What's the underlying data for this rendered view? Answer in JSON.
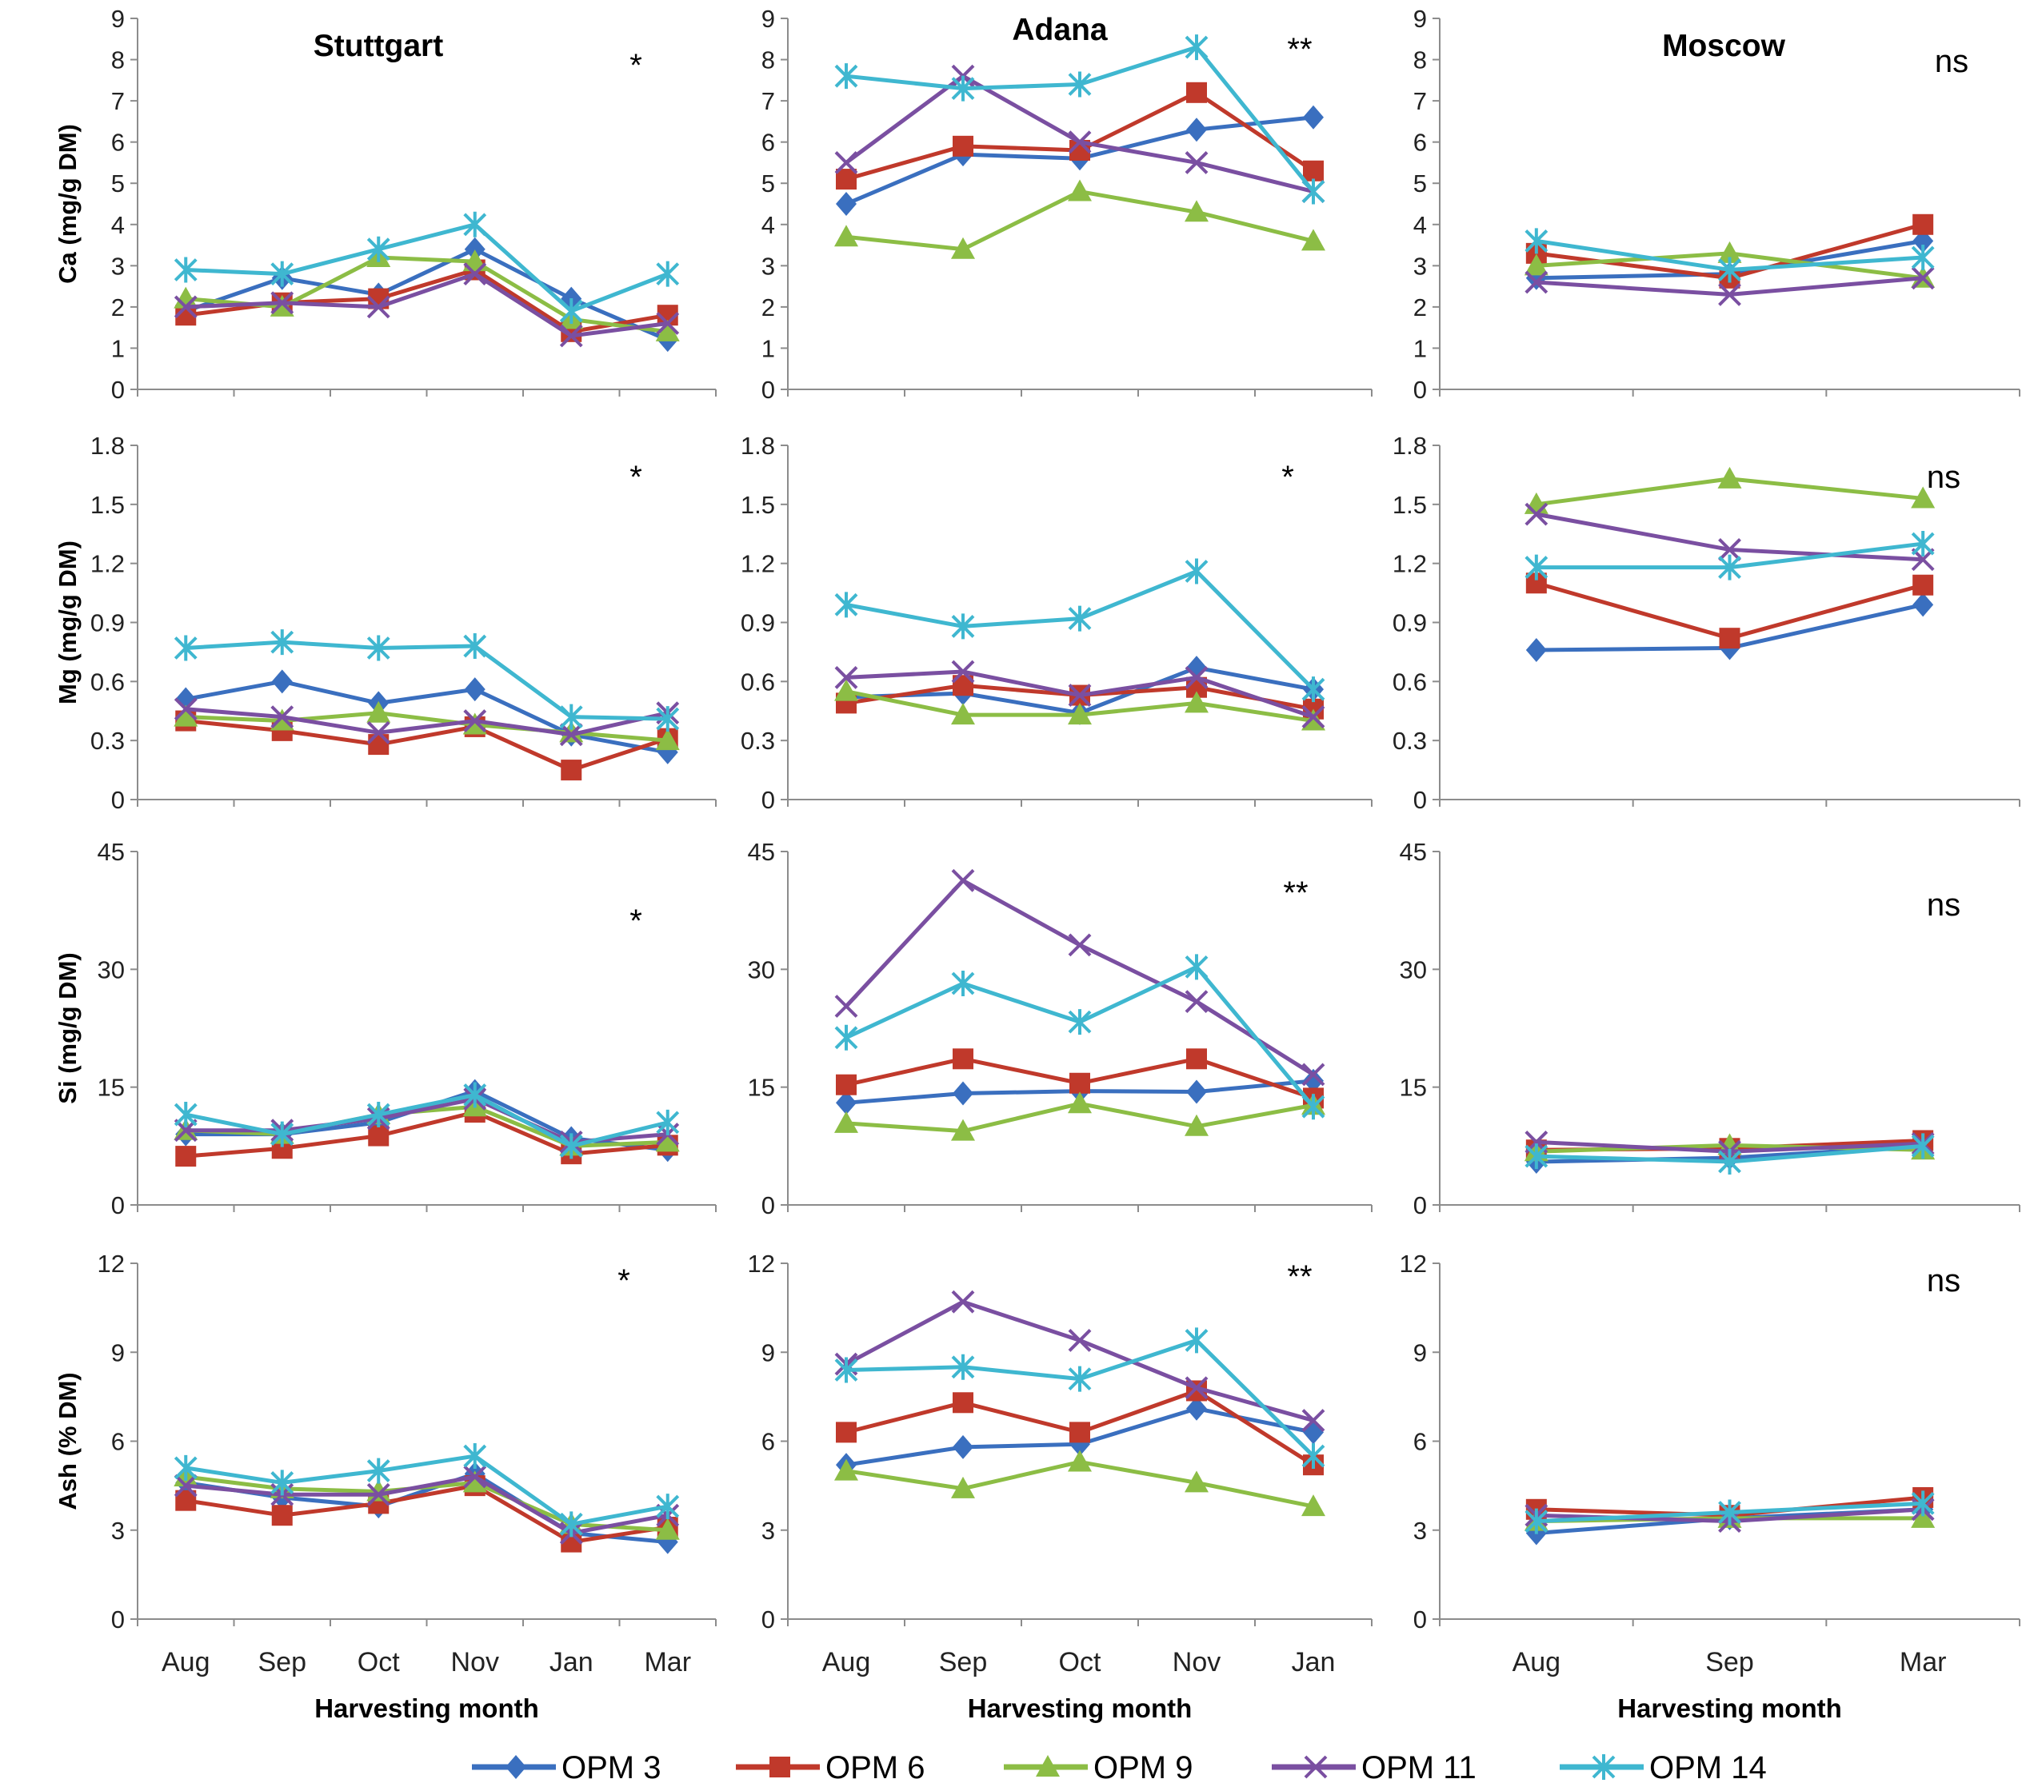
{
  "colors": {
    "OPM 3": "#3a6fbf",
    "OPM 6": "#c0392b",
    "OPM 9": "#8cbd45",
    "OPM 11": "#7a4fa1",
    "OPM 14": "#3fb7d0"
  },
  "legend": [
    "OPM 3",
    "OPM 6",
    "OPM 9",
    "OPM 11",
    "OPM 14"
  ],
  "chart_data": [
    {
      "type": "line",
      "site": "Stuttgart",
      "title": "Stuttgart",
      "ylabel": "Ca (mg/g DM)",
      "xlabel": "",
      "sig": "*",
      "ylim": [
        0,
        9
      ],
      "yticks": [
        0,
        1,
        2,
        3,
        4,
        5,
        6,
        7,
        8,
        9
      ],
      "categories": [
        "Aug",
        "Sep",
        "Oct",
        "Nov",
        "Jan",
        "Mar"
      ],
      "series": [
        {
          "name": "OPM 3",
          "values": [
            1.9,
            2.7,
            2.3,
            3.4,
            2.2,
            1.2
          ]
        },
        {
          "name": "OPM 6",
          "values": [
            1.8,
            2.1,
            2.2,
            2.9,
            1.4,
            1.8
          ]
        },
        {
          "name": "OPM 9",
          "values": [
            2.2,
            2.0,
            3.2,
            3.1,
            1.7,
            1.4
          ]
        },
        {
          "name": "OPM 11",
          "values": [
            2.0,
            2.1,
            2.0,
            2.8,
            1.3,
            1.6
          ]
        },
        {
          "name": "OPM 14",
          "values": [
            2.9,
            2.8,
            3.4,
            4.0,
            1.9,
            2.8
          ]
        }
      ]
    },
    {
      "type": "line",
      "site": "Adana",
      "title": "Adana",
      "ylabel": "",
      "xlabel": "",
      "sig": "**",
      "ylim": [
        0,
        9
      ],
      "yticks": [
        0,
        1,
        2,
        3,
        4,
        5,
        6,
        7,
        8,
        9
      ],
      "categories": [
        "Aug",
        "Sep",
        "Oct",
        "Nov",
        "Jan"
      ],
      "series": [
        {
          "name": "OPM 3",
          "values": [
            4.5,
            5.7,
            5.6,
            6.3,
            6.6
          ]
        },
        {
          "name": "OPM 6",
          "values": [
            5.1,
            5.9,
            5.8,
            7.2,
            5.3
          ]
        },
        {
          "name": "OPM 9",
          "values": [
            3.7,
            3.4,
            4.8,
            4.3,
            3.6
          ]
        },
        {
          "name": "OPM 11",
          "values": [
            5.5,
            7.6,
            6.0,
            5.5,
            4.8
          ]
        },
        {
          "name": "OPM 14",
          "values": [
            7.6,
            7.3,
            7.4,
            8.3,
            4.8
          ]
        }
      ]
    },
    {
      "type": "line",
      "site": "Moscow",
      "title": "Moscow",
      "ylabel": "",
      "xlabel": "",
      "sig": "ns",
      "ylim": [
        0,
        9
      ],
      "yticks": [
        0,
        1,
        2,
        3,
        4,
        5,
        6,
        7,
        8,
        9
      ],
      "categories": [
        "Aug",
        "Sep",
        "Mar"
      ],
      "series": [
        {
          "name": "OPM 3",
          "values": [
            2.7,
            2.8,
            3.6
          ]
        },
        {
          "name": "OPM 6",
          "values": [
            3.3,
            2.7,
            4.0
          ]
        },
        {
          "name": "OPM 9",
          "values": [
            3.0,
            3.3,
            2.7
          ]
        },
        {
          "name": "OPM 11",
          "values": [
            2.6,
            2.3,
            2.7
          ]
        },
        {
          "name": "OPM 14",
          "values": [
            3.6,
            2.9,
            3.2
          ]
        }
      ]
    },
    {
      "type": "line",
      "site": "Stuttgart",
      "title": "",
      "ylabel": "Mg (mg/g DM)",
      "xlabel": "",
      "sig": "*",
      "ylim": [
        0,
        1.8
      ],
      "yticks": [
        0,
        0.3,
        0.6,
        0.9,
        1.2,
        1.5,
        1.8
      ],
      "categories": [
        "Aug",
        "Sep",
        "Oct",
        "Nov",
        "Jan",
        "Mar"
      ],
      "series": [
        {
          "name": "OPM 3",
          "values": [
            0.51,
            0.6,
            0.49,
            0.56,
            0.33,
            0.24
          ]
        },
        {
          "name": "OPM 6",
          "values": [
            0.4,
            0.35,
            0.28,
            0.37,
            0.15,
            0.31
          ]
        },
        {
          "name": "OPM 9",
          "values": [
            0.42,
            0.4,
            0.44,
            0.38,
            0.34,
            0.3
          ]
        },
        {
          "name": "OPM 11",
          "values": [
            0.46,
            0.42,
            0.34,
            0.4,
            0.33,
            0.44
          ]
        },
        {
          "name": "OPM 14",
          "values": [
            0.77,
            0.8,
            0.77,
            0.78,
            0.42,
            0.41
          ]
        }
      ]
    },
    {
      "type": "line",
      "site": "Adana",
      "title": "",
      "ylabel": "",
      "xlabel": "",
      "sig": "*",
      "ylim": [
        0,
        1.8
      ],
      "yticks": [
        0,
        0.3,
        0.6,
        0.9,
        1.2,
        1.5,
        1.8
      ],
      "categories": [
        "Aug",
        "Sep",
        "Oct",
        "Nov",
        "Jan"
      ],
      "series": [
        {
          "name": "OPM 3",
          "values": [
            0.52,
            0.54,
            0.44,
            0.67,
            0.56
          ]
        },
        {
          "name": "OPM 6",
          "values": [
            0.49,
            0.58,
            0.53,
            0.57,
            0.46
          ]
        },
        {
          "name": "OPM 9",
          "values": [
            0.55,
            0.43,
            0.43,
            0.49,
            0.4
          ]
        },
        {
          "name": "OPM 11",
          "values": [
            0.62,
            0.65,
            0.53,
            0.62,
            0.42
          ]
        },
        {
          "name": "OPM 14",
          "values": [
            0.99,
            0.88,
            0.92,
            1.16,
            0.56
          ]
        }
      ]
    },
    {
      "type": "line",
      "site": "Moscow",
      "title": "",
      "ylabel": "",
      "xlabel": "",
      "sig": "ns",
      "ylim": [
        0,
        1.8
      ],
      "yticks": [
        0,
        0.3,
        0.6,
        0.9,
        1.2,
        1.5,
        1.8
      ],
      "categories": [
        "Aug",
        "Sep",
        "Mar"
      ],
      "series": [
        {
          "name": "OPM 3",
          "values": [
            0.76,
            0.77,
            0.99
          ]
        },
        {
          "name": "OPM 6",
          "values": [
            1.1,
            0.82,
            1.09
          ]
        },
        {
          "name": "OPM 9",
          "values": [
            1.5,
            1.63,
            1.53
          ]
        },
        {
          "name": "OPM 11",
          "values": [
            1.45,
            1.27,
            1.22
          ]
        },
        {
          "name": "OPM 14",
          "values": [
            1.18,
            1.18,
            1.3
          ]
        }
      ]
    },
    {
      "type": "line",
      "site": "Stuttgart",
      "title": "",
      "ylabel": "Si (mg/g DM)",
      "xlabel": "",
      "sig": "*",
      "ylim": [
        0,
        45
      ],
      "yticks": [
        0,
        15,
        30,
        45
      ],
      "categories": [
        "Aug",
        "Sep",
        "Oct",
        "Nov",
        "Jan",
        "Mar"
      ],
      "series": [
        {
          "name": "OPM 3",
          "values": [
            9.0,
            9.0,
            10.5,
            14.5,
            8.5,
            7.0
          ]
        },
        {
          "name": "OPM 6",
          "values": [
            6.2,
            7.2,
            8.8,
            11.8,
            6.5,
            7.6
          ]
        },
        {
          "name": "OPM 9",
          "values": [
            9.5,
            9.0,
            11.5,
            12.5,
            7.5,
            8.0
          ]
        },
        {
          "name": "OPM 11",
          "values": [
            9.5,
            9.5,
            11.0,
            13.5,
            8.0,
            9.0
          ]
        },
        {
          "name": "OPM 14",
          "values": [
            11.5,
            9.0,
            11.5,
            14.0,
            7.5,
            10.5
          ]
        }
      ]
    },
    {
      "type": "line",
      "site": "Adana",
      "title": "",
      "ylabel": "",
      "xlabel": "",
      "sig": "**",
      "ylim": [
        0,
        45
      ],
      "yticks": [
        0,
        15,
        30,
        45
      ],
      "categories": [
        "Aug",
        "Sep",
        "Oct",
        "Nov",
        "Jan"
      ],
      "series": [
        {
          "name": "OPM 3",
          "values": [
            13.0,
            14.2,
            14.5,
            14.4,
            15.8
          ]
        },
        {
          "name": "OPM 6",
          "values": [
            15.3,
            18.6,
            15.5,
            18.6,
            13.6
          ]
        },
        {
          "name": "OPM 9",
          "values": [
            10.4,
            9.4,
            12.9,
            10.0,
            12.7
          ]
        },
        {
          "name": "OPM 11",
          "values": [
            25.3,
            41.3,
            33.1,
            25.9,
            16.6
          ]
        },
        {
          "name": "OPM 14",
          "values": [
            21.3,
            28.2,
            23.3,
            30.3,
            12.5
          ]
        }
      ]
    },
    {
      "type": "line",
      "site": "Moscow",
      "title": "",
      "ylabel": "",
      "xlabel": "",
      "sig": "ns",
      "ylim": [
        0,
        45
      ],
      "yticks": [
        0,
        15,
        30,
        45
      ],
      "categories": [
        "Aug",
        "Sep",
        "Mar"
      ],
      "series": [
        {
          "name": "OPM 3",
          "values": [
            5.5,
            6.0,
            7.5
          ]
        },
        {
          "name": "OPM 6",
          "values": [
            7.0,
            7.2,
            8.2
          ]
        },
        {
          "name": "OPM 9",
          "values": [
            6.8,
            7.6,
            7.0
          ]
        },
        {
          "name": "OPM 11",
          "values": [
            8.0,
            6.8,
            7.8
          ]
        },
        {
          "name": "OPM 14",
          "values": [
            6.2,
            5.5,
            7.5
          ]
        }
      ]
    },
    {
      "type": "line",
      "site": "Stuttgart",
      "title": "",
      "ylabel": "Ash (% DM)",
      "xlabel": "Harvesting month",
      "sig": "*",
      "ylim": [
        0,
        12
      ],
      "yticks": [
        0,
        3,
        6,
        9,
        12
      ],
      "categories": [
        "Aug",
        "Sep",
        "Oct",
        "Nov",
        "Jan",
        "Mar"
      ],
      "series": [
        {
          "name": "OPM 3",
          "values": [
            4.6,
            4.1,
            3.8,
            4.9,
            2.9,
            2.6
          ]
        },
        {
          "name": "OPM 6",
          "values": [
            4.0,
            3.5,
            3.9,
            4.5,
            2.6,
            3.1
          ]
        },
        {
          "name": "OPM 9",
          "values": [
            4.8,
            4.4,
            4.3,
            4.6,
            3.2,
            3.0
          ]
        },
        {
          "name": "OPM 11",
          "values": [
            4.5,
            4.2,
            4.2,
            4.8,
            2.9,
            3.5
          ]
        },
        {
          "name": "OPM 14",
          "values": [
            5.1,
            4.6,
            5.0,
            5.5,
            3.2,
            3.8
          ]
        }
      ]
    },
    {
      "type": "line",
      "site": "Adana",
      "title": "",
      "ylabel": "",
      "xlabel": "Harvesting month",
      "sig": "**",
      "ylim": [
        0,
        12
      ],
      "yticks": [
        0,
        3,
        6,
        9,
        12
      ],
      "categories": [
        "Aug",
        "Sep",
        "Oct",
        "Nov",
        "Jan"
      ],
      "series": [
        {
          "name": "OPM 3",
          "values": [
            5.2,
            5.8,
            5.9,
            7.1,
            6.3
          ]
        },
        {
          "name": "OPM 6",
          "values": [
            6.3,
            7.3,
            6.3,
            7.7,
            5.2
          ]
        },
        {
          "name": "OPM 9",
          "values": [
            5.0,
            4.4,
            5.3,
            4.6,
            3.8
          ]
        },
        {
          "name": "OPM 11",
          "values": [
            8.6,
            10.7,
            9.4,
            7.8,
            6.7
          ]
        },
        {
          "name": "OPM 14",
          "values": [
            8.4,
            8.5,
            8.1,
            9.4,
            5.5
          ]
        }
      ]
    },
    {
      "type": "line",
      "site": "Moscow",
      "title": "",
      "ylabel": "",
      "xlabel": "Harvesting month",
      "sig": "ns",
      "ylim": [
        0,
        12
      ],
      "yticks": [
        0,
        3,
        6,
        9,
        12
      ],
      "categories": [
        "Aug",
        "Sep",
        "Mar"
      ],
      "series": [
        {
          "name": "OPM 3",
          "values": [
            2.9,
            3.4,
            3.7
          ]
        },
        {
          "name": "OPM 6",
          "values": [
            3.7,
            3.5,
            4.1
          ]
        },
        {
          "name": "OPM 9",
          "values": [
            3.3,
            3.4,
            3.4
          ]
        },
        {
          "name": "OPM 11",
          "values": [
            3.5,
            3.3,
            3.7
          ]
        },
        {
          "name": "OPM 14",
          "values": [
            3.3,
            3.6,
            3.9
          ]
        }
      ]
    }
  ]
}
